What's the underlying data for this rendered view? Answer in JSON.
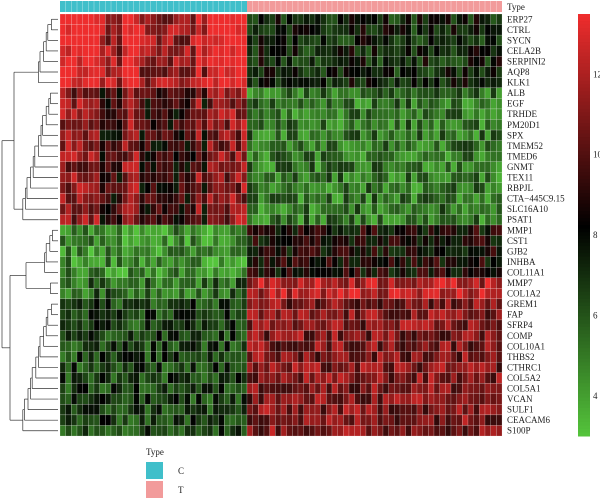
{
  "chart_data": {
    "type": "heatmap",
    "annotation_title": "Type",
    "rows": [
      "ERP27",
      "CTRL",
      "SYCN",
      "CELA2B",
      "SERPINI2",
      "AQP8",
      "KLK1",
      "ALB",
      "EGF",
      "TRHDE",
      "PM20D1",
      "SPX",
      "TMEM52",
      "TMED6",
      "GNMT",
      "TEX11",
      "RBPJL",
      "CTA−445C9.15",
      "SLC16A10",
      "PSAT1",
      "MMP1",
      "CST1",
      "GJB2",
      "INHBA",
      "COL11A1",
      "MMP7",
      "COL1A2",
      "GREM1",
      "FAP",
      "SFRP4",
      "COMP",
      "COL10A1",
      "THBS2",
      "CTHRC1",
      "COL5A2",
      "COL5A1",
      "VCAN",
      "SULF1",
      "CEACAM6",
      "S100P"
    ],
    "groups": [
      {
        "name": "C",
        "count": 33,
        "color": "#40bfca"
      },
      {
        "name": "T",
        "count": 45,
        "color": "#f29b9b"
      }
    ],
    "row_clusters": [
      {
        "range": [
          0,
          6
        ],
        "c_level": 13.0,
        "t_level": 7.4
      },
      {
        "range": [
          7,
          19
        ],
        "c_level": 10.4,
        "t_level": 5.2
      },
      {
        "range": [
          20,
          24
        ],
        "c_level": 4.6,
        "t_level": 8.4
      },
      {
        "range": [
          25,
          26
        ],
        "c_level": 5.6,
        "t_level": 12.2
      },
      {
        "range": [
          27,
          39
        ],
        "c_level": 6.6,
        "t_level": 11.0
      }
    ],
    "colorbar": {
      "ticks": [
        4,
        6,
        8,
        10,
        12
      ],
      "min": 3.0,
      "max": 13.5,
      "colors": [
        "#55c63c",
        "#000000",
        "#ee2d2d"
      ]
    },
    "legend": {
      "title": "Type",
      "entries": [
        "C",
        "T"
      ]
    }
  }
}
